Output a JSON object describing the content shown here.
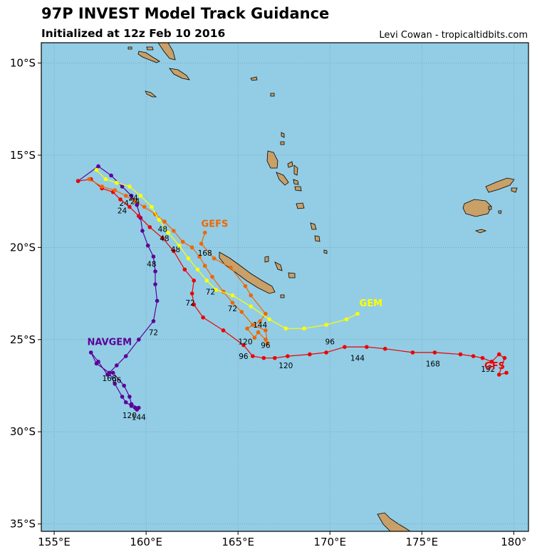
{
  "header": {
    "title": "97P INVEST Model Track Guidance",
    "subtitle": "Initialized at 12z Feb 10 2016",
    "credit": "Levi Cowan - tropicaltidbits.com"
  },
  "colors": {
    "ocean": "#92cde5",
    "land": "#c8a068",
    "grid": "#6f8f9f",
    "NAVGEM": "#5c0099",
    "GFS": "#ee0000",
    "GEFS": "#f06600",
    "GEM": "#ffff00"
  },
  "chart_data": {
    "type": "map-track",
    "xlim": [
      154.3,
      180.8
    ],
    "ylim": [
      -35.4,
      -8.9
    ],
    "xticks": [
      {
        "v": 155,
        "label": "155°E"
      },
      {
        "v": 160,
        "label": "160°E"
      },
      {
        "v": 165,
        "label": "165°E"
      },
      {
        "v": 170,
        "label": "170°E"
      },
      {
        "v": 175,
        "label": "175°E"
      },
      {
        "v": 180,
        "label": "180°"
      }
    ],
    "yticks": [
      {
        "v": -10,
        "label": "10°S"
      },
      {
        "v": -15,
        "label": "15°S"
      },
      {
        "v": -20,
        "label": "20°S"
      },
      {
        "v": -25,
        "label": "25°S"
      },
      {
        "v": -30,
        "label": "30°S"
      },
      {
        "v": -35,
        "label": "35°S"
      }
    ],
    "series": [
      {
        "name": "NAVGEM",
        "label_pos": [
          156.8,
          -25.1
        ],
        "points": [
          [
            156.3,
            -16.4
          ],
          [
            157.4,
            -15.6
          ],
          [
            158.1,
            -16.1
          ],
          [
            158.7,
            -16.7
          ],
          [
            159.2,
            -17.2
          ],
          [
            159.5,
            -17.7
          ],
          [
            159.7,
            -18.4
          ],
          [
            159.8,
            -19.1
          ],
          [
            160.1,
            -19.9
          ],
          [
            160.4,
            -20.5
          ],
          [
            160.5,
            -21.3
          ],
          [
            160.5,
            -22.0
          ],
          [
            160.6,
            -22.9
          ],
          [
            160.4,
            -24.0
          ],
          [
            159.6,
            -25.0
          ],
          [
            158.9,
            -25.9
          ],
          [
            158.4,
            -26.4
          ],
          [
            157.9,
            -26.9
          ],
          [
            157.4,
            -26.2
          ],
          [
            157.0,
            -25.7
          ],
          [
            157.3,
            -26.3
          ],
          [
            158.0,
            -26.8
          ],
          [
            158.3,
            -27.4
          ],
          [
            158.7,
            -28.1
          ],
          [
            158.9,
            -28.4
          ],
          [
            159.2,
            -28.6
          ],
          [
            159.4,
            -28.7
          ],
          [
            159.5,
            -28.8
          ],
          [
            159.6,
            -28.7
          ],
          [
            159.2,
            -28.5
          ],
          [
            159.1,
            -28.1
          ],
          [
            158.8,
            -27.5
          ],
          [
            158.2,
            -26.8
          ]
        ],
        "labels": [
          {
            "t": "24",
            "pos": [
              158.8,
              -17.6
            ]
          },
          {
            "t": "48",
            "pos": [
              160.3,
              -20.9
            ]
          },
          {
            "t": "72",
            "pos": [
              160.4,
              -24.6
            ]
          },
          {
            "t": "96",
            "pos": [
              158.4,
              -27.2
            ]
          },
          {
            "t": "168",
            "pos": [
              158.0,
              -27.1
            ]
          },
          {
            "t": "120",
            "pos": [
              159.1,
              -29.1
            ]
          },
          {
            "t": "144",
            "pos": [
              159.6,
              -29.2
            ]
          }
        ]
      },
      {
        "name": "GFS",
        "label_pos": [
          178.4,
          -26.4
        ],
        "points": [
          [
            156.3,
            -16.4
          ],
          [
            157.0,
            -16.3
          ],
          [
            157.6,
            -16.8
          ],
          [
            158.2,
            -17.0
          ],
          [
            158.6,
            -17.4
          ],
          [
            159.1,
            -17.8
          ],
          [
            159.6,
            -18.3
          ],
          [
            160.2,
            -18.9
          ],
          [
            160.9,
            -19.5
          ],
          [
            161.5,
            -20.2
          ],
          [
            162.1,
            -21.2
          ],
          [
            162.6,
            -21.8
          ],
          [
            162.5,
            -22.5
          ],
          [
            162.6,
            -23.1
          ],
          [
            163.1,
            -23.8
          ],
          [
            164.2,
            -24.5
          ],
          [
            165.3,
            -25.3
          ],
          [
            165.8,
            -25.9
          ],
          [
            166.4,
            -26.0
          ],
          [
            167.0,
            -26.0
          ],
          [
            167.7,
            -25.9
          ],
          [
            168.9,
            -25.8
          ],
          [
            169.8,
            -25.7
          ],
          [
            170.8,
            -25.4
          ],
          [
            172.0,
            -25.4
          ],
          [
            173.0,
            -25.5
          ],
          [
            174.5,
            -25.7
          ],
          [
            175.7,
            -25.7
          ],
          [
            177.1,
            -25.8
          ],
          [
            177.8,
            -25.9
          ],
          [
            178.3,
            -26.0
          ],
          [
            178.8,
            -26.2
          ],
          [
            179.2,
            -25.8
          ],
          [
            179.5,
            -26.0
          ],
          [
            179.2,
            -26.9
          ],
          [
            179.6,
            -26.8
          ]
        ],
        "labels": [
          {
            "t": "24",
            "pos": [
              158.7,
              -18.0
            ]
          },
          {
            "t": "48",
            "pos": [
              161.6,
              -20.1
            ]
          },
          {
            "t": "72",
            "pos": [
              162.4,
              -23.0
            ]
          },
          {
            "t": "96",
            "pos": [
              165.3,
              -25.9
            ]
          },
          {
            "t": "120",
            "pos": [
              167.6,
              -26.4
            ]
          },
          {
            "t": "144",
            "pos": [
              171.5,
              -26.0
            ]
          },
          {
            "t": "168",
            "pos": [
              175.6,
              -26.3
            ]
          },
          {
            "t": "192",
            "pos": [
              178.6,
              -26.6
            ]
          }
        ]
      },
      {
        "name": "GEFS",
        "label_pos": [
          163.0,
          -18.7
        ],
        "points": [
          [
            156.9,
            -16.3
          ],
          [
            157.6,
            -16.7
          ],
          [
            158.3,
            -16.9
          ],
          [
            158.9,
            -17.2
          ],
          [
            159.4,
            -17.5
          ],
          [
            159.9,
            -17.8
          ],
          [
            160.5,
            -18.2
          ],
          [
            161.0,
            -18.6
          ],
          [
            161.5,
            -19.1
          ],
          [
            162.0,
            -19.7
          ],
          [
            162.5,
            -20.0
          ],
          [
            162.9,
            -20.5
          ],
          [
            163.2,
            -21.0
          ],
          [
            163.6,
            -21.6
          ],
          [
            164.2,
            -22.4
          ],
          [
            164.7,
            -23.0
          ],
          [
            165.2,
            -23.5
          ],
          [
            165.8,
            -24.2
          ],
          [
            166.5,
            -24.5
          ],
          [
            166.6,
            -25.2
          ],
          [
            166.5,
            -25.0
          ],
          [
            166.1,
            -24.6
          ],
          [
            165.9,
            -24.9
          ],
          [
            165.5,
            -24.4
          ],
          [
            166.2,
            -24.0
          ],
          [
            166.5,
            -23.6
          ],
          [
            165.7,
            -22.6
          ],
          [
            165.4,
            -22.1
          ],
          [
            164.6,
            -21.1
          ],
          [
            163.7,
            -20.6
          ],
          [
            163.0,
            -19.8
          ],
          [
            163.2,
            -19.2
          ]
        ],
        "labels": [
          {
            "t": "24",
            "pos": [
              159.4,
              -17.5
            ]
          },
          {
            "t": "48",
            "pos": [
              161.0,
              -19.5
            ]
          },
          {
            "t": "168",
            "pos": [
              163.2,
              -20.3
            ]
          },
          {
            "t": "72",
            "pos": [
              164.7,
              -23.3
            ]
          },
          {
            "t": "144",
            "pos": [
              166.2,
              -24.2
            ]
          },
          {
            "t": "120",
            "pos": [
              165.4,
              -25.1
            ]
          },
          {
            "t": "96",
            "pos": [
              166.5,
              -25.3
            ]
          }
        ]
      },
      {
        "name": "GEM",
        "label_pos": [
          171.6,
          -23.0
        ],
        "points": [
          [
            157.3,
            -15.8
          ],
          [
            157.8,
            -16.3
          ],
          [
            158.4,
            -16.5
          ],
          [
            159.1,
            -16.7
          ],
          [
            159.7,
            -17.2
          ],
          [
            160.3,
            -17.8
          ],
          [
            160.7,
            -18.5
          ],
          [
            161.2,
            -19.2
          ],
          [
            161.8,
            -19.9
          ],
          [
            162.3,
            -20.6
          ],
          [
            162.8,
            -21.2
          ],
          [
            163.3,
            -21.8
          ],
          [
            163.8,
            -22.3
          ],
          [
            164.7,
            -22.6
          ],
          [
            165.7,
            -23.2
          ],
          [
            166.7,
            -23.9
          ],
          [
            167.6,
            -24.4
          ],
          [
            168.6,
            -24.4
          ],
          [
            169.8,
            -24.2
          ],
          [
            170.9,
            -23.9
          ],
          [
            171.5,
            -23.6
          ]
        ],
        "labels": [
          {
            "t": "24",
            "pos": [
              159.3,
              -17.3
            ]
          },
          {
            "t": "48",
            "pos": [
              160.9,
              -19.0
            ]
          },
          {
            "t": "72",
            "pos": [
              163.5,
              -22.4
            ]
          },
          {
            "t": "96",
            "pos": [
              170.0,
              -25.1
            ]
          }
        ]
      }
    ]
  }
}
